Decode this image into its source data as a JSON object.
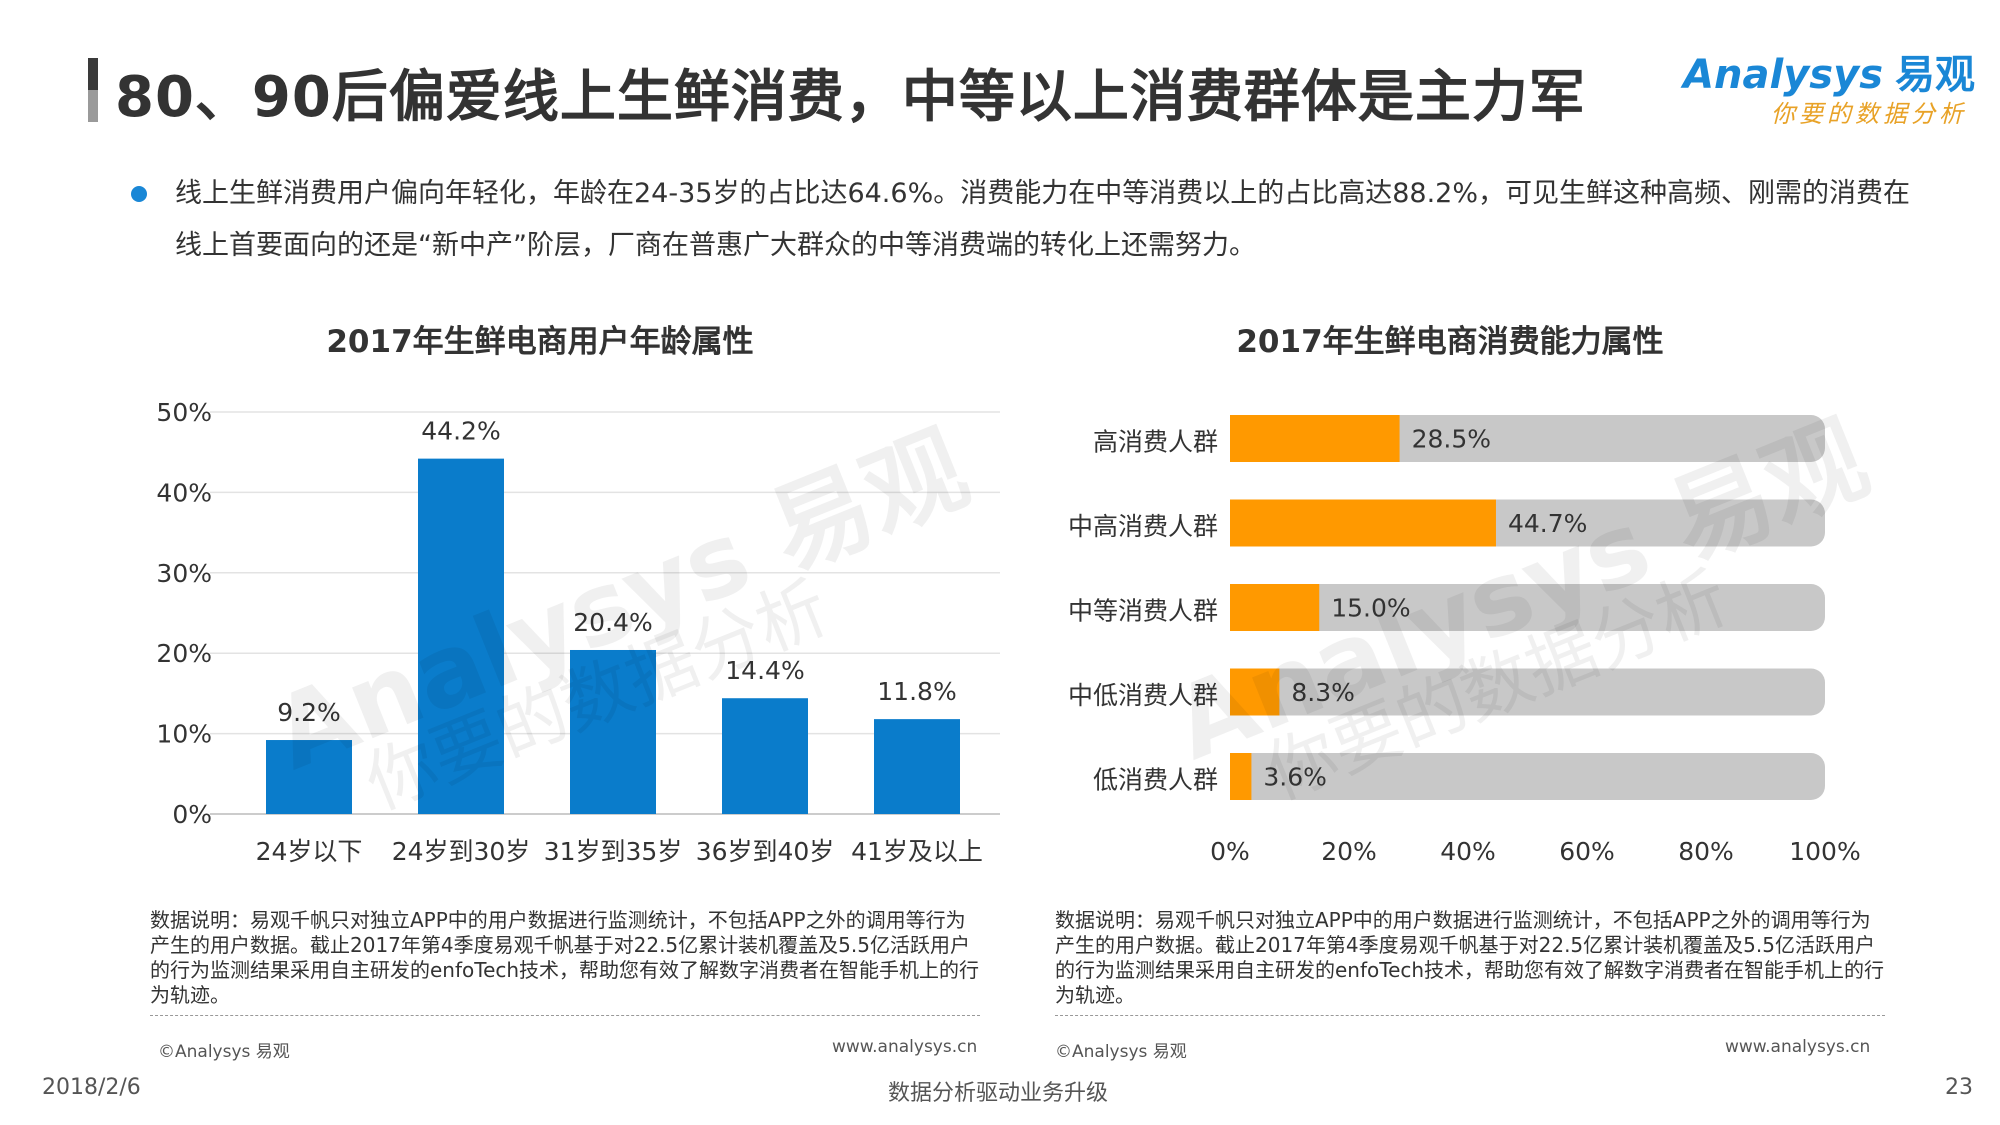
{
  "slide": {
    "title": "80、90后偏爱线上生鲜消费，中等以上消费群体是主力军",
    "bullet": "线上生鲜消费用户偏向年轻化，年龄在24-35岁的占比达64.6%。消费能力在中等消费以上的占比高达88.2%，可见生鲜这种高频、刚需的消费在线上首要面向的还是“新中产”阶层，厂商在普惠广大群众的中等消费端的转化上还需努力。",
    "logo": {
      "brand": "Analysys",
      "brand_cn": "易观",
      "tagline": "你要的数据分析"
    },
    "watermark": {
      "brand": "Analysys 易观",
      "tagline": "你要的数据分析"
    },
    "footnote": "数据说明：易观千帆只对独立APP中的用户数据进行监测统计，不包括APP之外的调用等行为产生的用户数据。截止2017年第4季度易观千帆基于对22.5亿累计装机覆盖及5.5亿活跃用户的行为监测结果采用自主研发的enfoTech技术，帮助您有效了解数字消费者在智能手机上的行为轨迹。",
    "copyright": "©Analysys 易观",
    "website": "www.analysys.cn",
    "date": "2018/2/6",
    "center_footer": "数据分析驱动业务升级",
    "page_number": "23"
  },
  "chart_data": [
    {
      "type": "bar",
      "title": "2017年生鲜电商用户年龄属性",
      "categories": [
        "24岁以下",
        "24岁到30岁",
        "31岁到35岁",
        "36岁到40岁",
        "41岁及以上"
      ],
      "values": [
        9.2,
        44.2,
        20.4,
        14.4,
        11.8
      ],
      "value_labels": [
        "9.2%",
        "44.2%",
        "20.4%",
        "14.4%",
        "11.8%"
      ],
      "ylim": [
        0,
        50
      ],
      "yticks": [
        "0%",
        "10%",
        "20%",
        "30%",
        "40%",
        "50%"
      ],
      "grid": true,
      "color": "#0a7ccb"
    },
    {
      "type": "bar",
      "orientation": "horizontal",
      "stacked_100": true,
      "title": "2017年生鲜电商消费能力属性",
      "categories": [
        "高消费人群",
        "中高消费人群",
        "中等消费人群",
        "中低消费人群",
        "低消费人群"
      ],
      "values": [
        28.5,
        44.7,
        15.0,
        8.3,
        3.6
      ],
      "value_labels": [
        "28.5%",
        "44.7%",
        "15.0%",
        "8.3%",
        "3.6%"
      ],
      "xlim": [
        0,
        100
      ],
      "xticks": [
        "0%",
        "20%",
        "40%",
        "60%",
        "80%",
        "100%"
      ],
      "color": "#ff9900",
      "track_color": "#c8c8c8"
    }
  ]
}
